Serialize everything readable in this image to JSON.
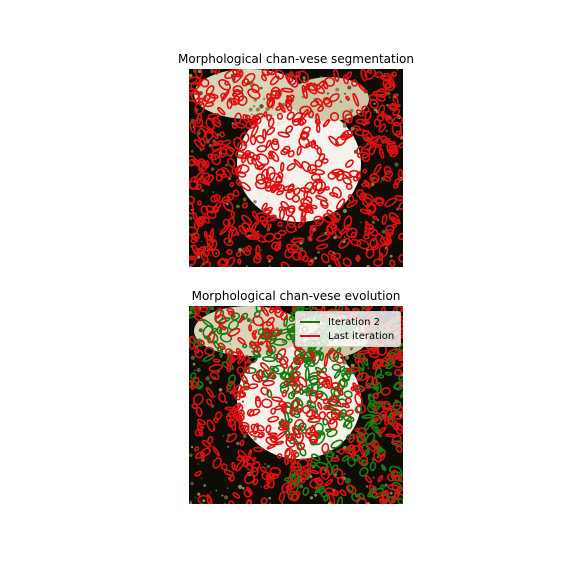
{
  "panels": [
    {
      "title": "Morphological chan-vese segmentation"
    },
    {
      "title": "Morphological chan-vese evolution"
    }
  ],
  "legend": [
    {
      "label": "Iteration 2",
      "color": "#1a7a10"
    },
    {
      "label": "Last iteration",
      "color": "#e01010"
    }
  ],
  "colors": {
    "contour_red": "#e01010",
    "contour_green": "#1a7a10",
    "background_dark": "#0d0c06",
    "bright_region": "#f4f2ea"
  }
}
